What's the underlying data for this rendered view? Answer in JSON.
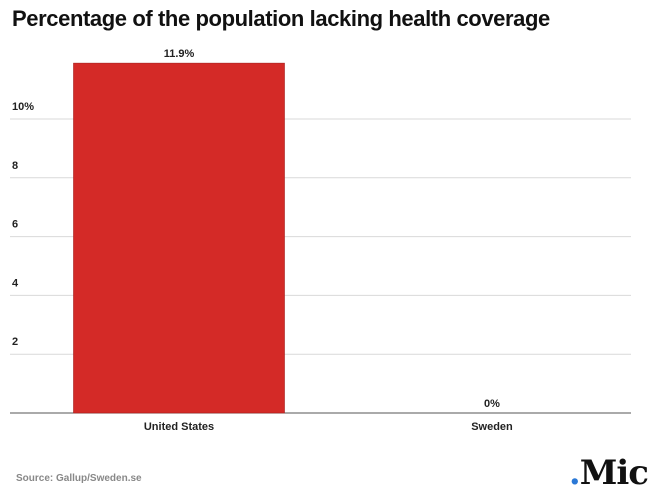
{
  "title": "Percentage of the population lacking health coverage",
  "source": "Source: Gallup/Sweden.se",
  "brand": {
    "dot": ".",
    "name": "Mic",
    "dot_color": "#2a78d6"
  },
  "chart_data": {
    "type": "bar",
    "title": "Percentage of the population lacking health coverage",
    "xlabel": "",
    "ylabel": "",
    "categories": [
      "United States",
      "Sweden"
    ],
    "values": [
      11.9,
      0
    ],
    "value_labels": [
      "11.9%",
      "0%"
    ],
    "ylim": [
      0,
      12
    ],
    "yticks": [
      2,
      4,
      6,
      8,
      10
    ],
    "ytick_labels": [
      "2",
      "4",
      "6",
      "8",
      "10%"
    ],
    "bar_color": "#d42a27",
    "grid": true,
    "legend": "none"
  }
}
